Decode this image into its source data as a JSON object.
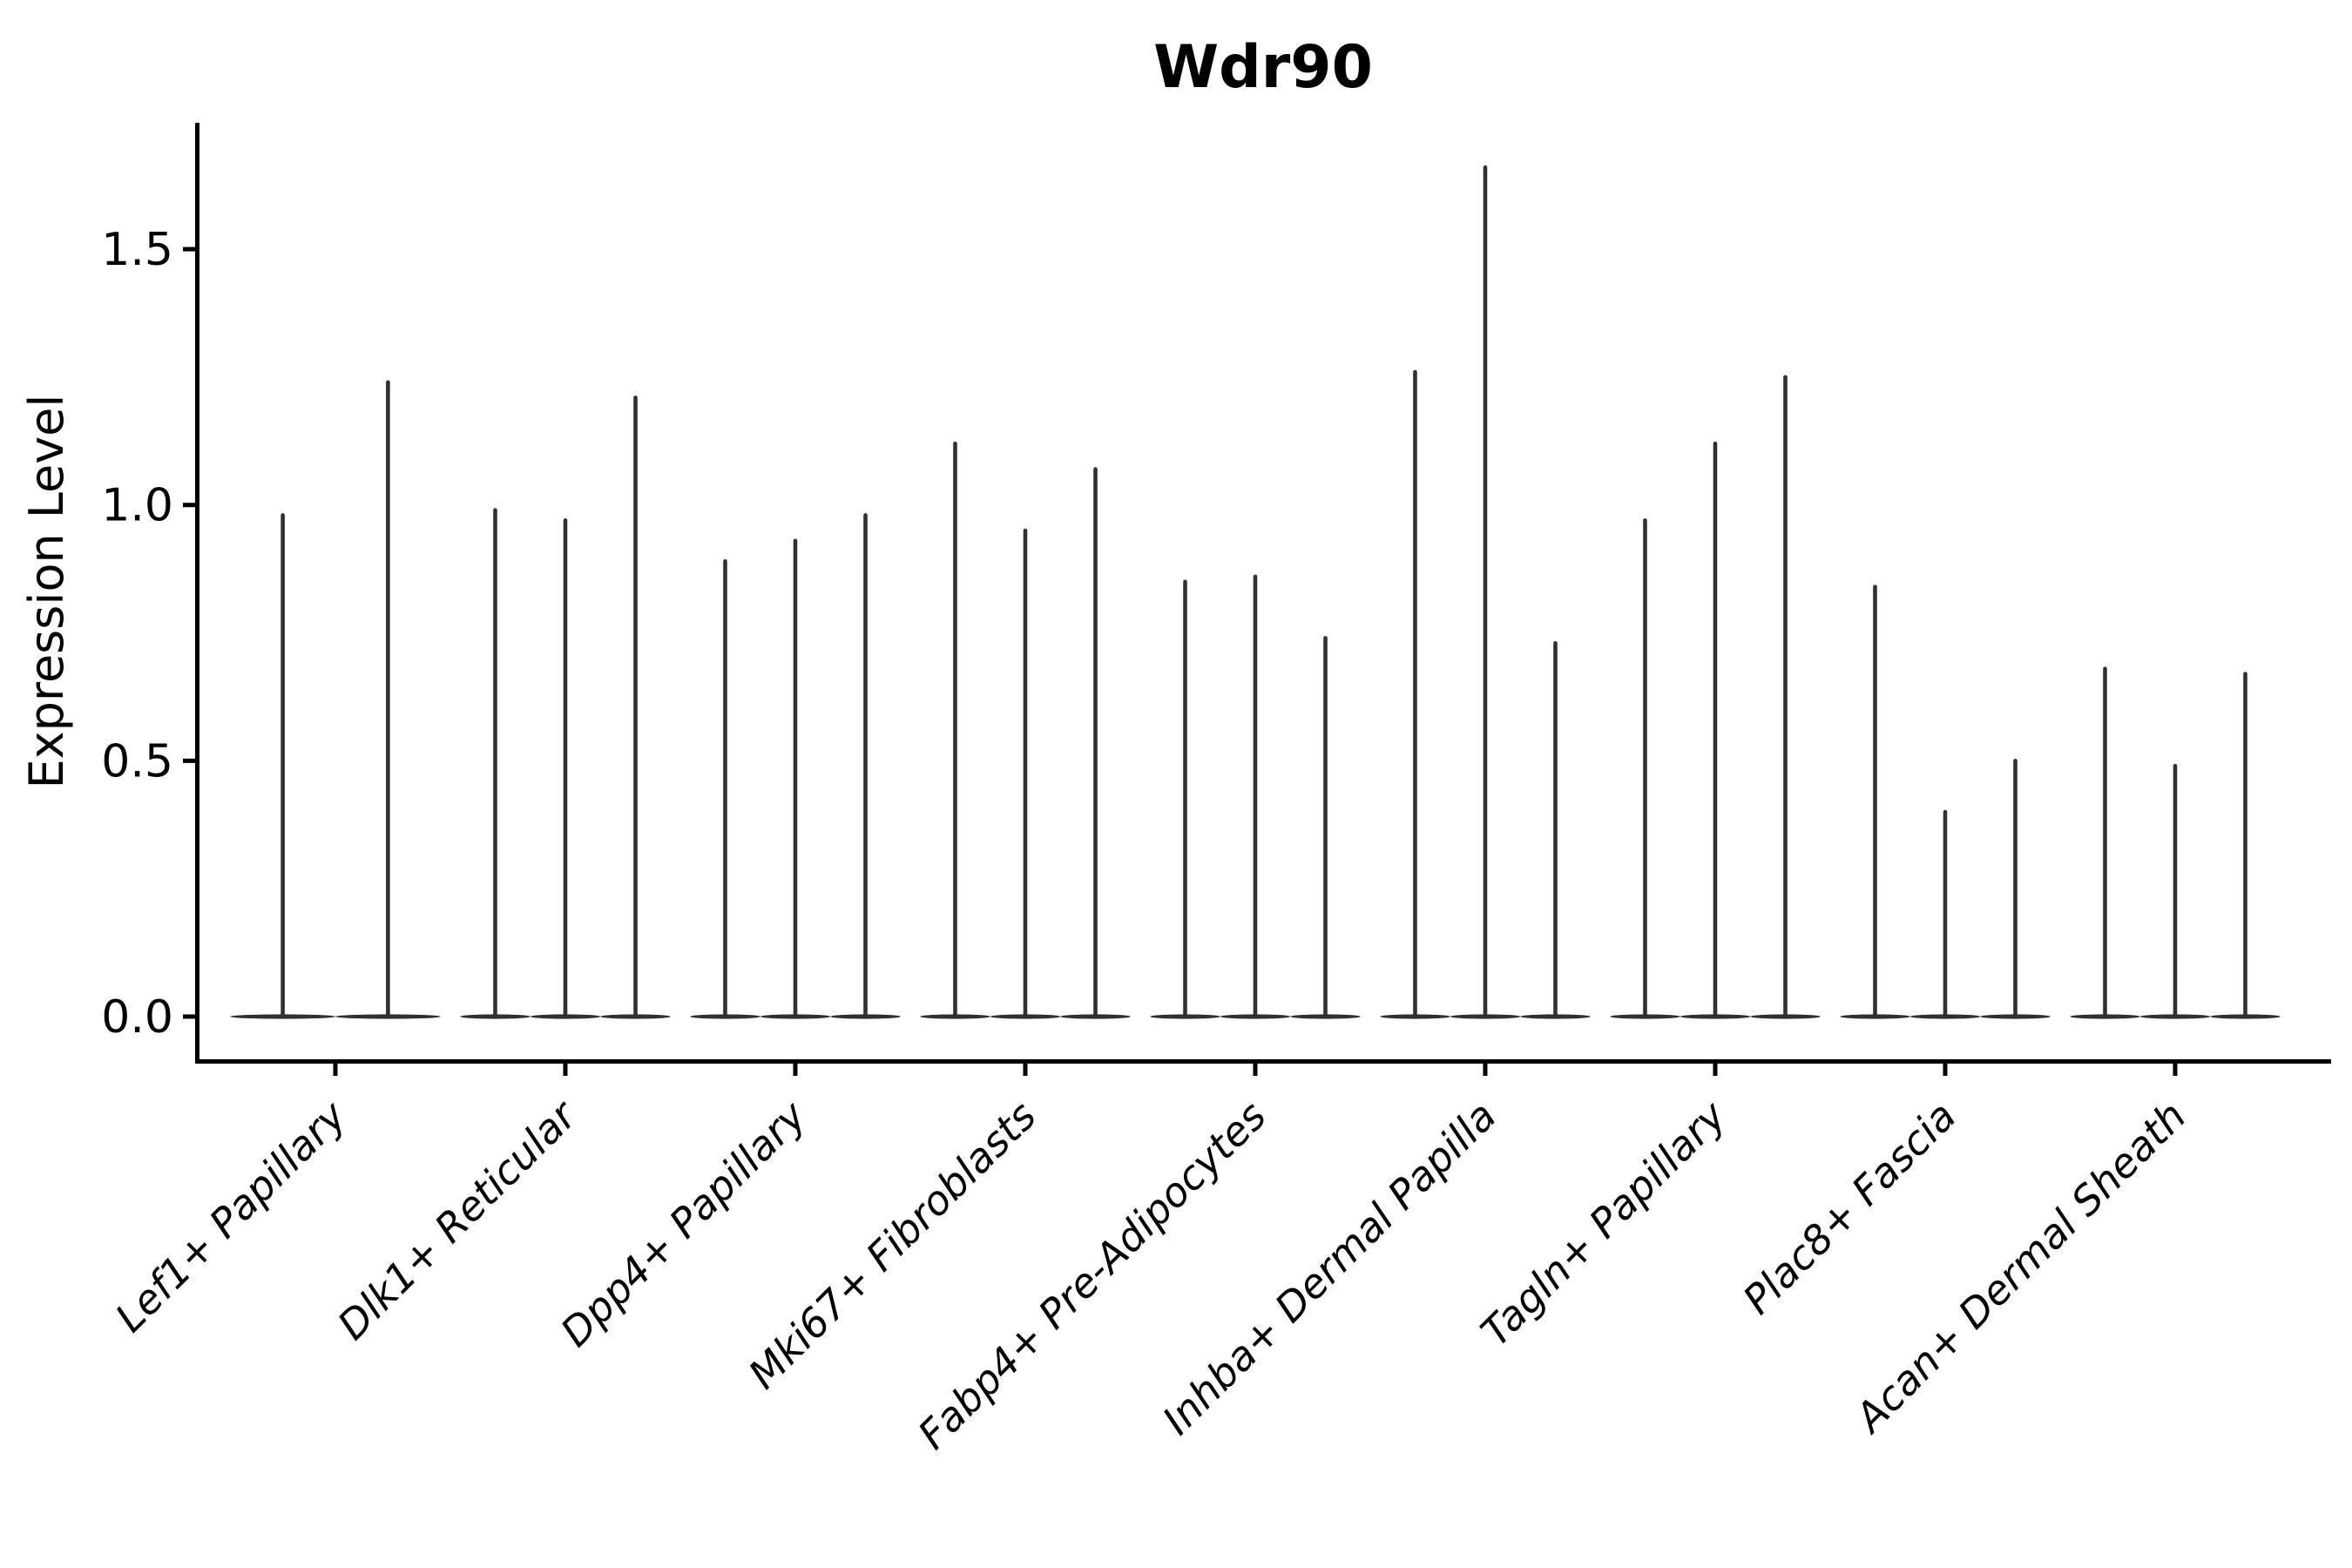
{
  "chart_data": {
    "type": "violin",
    "title": "Wdr90",
    "ylabel": "Expression Level",
    "xlabel": "",
    "yticks": [
      0.0,
      0.5,
      1.0,
      1.5
    ],
    "ytick_labels": [
      "0.0",
      "0.5",
      "1.0",
      "1.5"
    ],
    "ylim": [
      -0.09,
      1.75
    ],
    "grid": false,
    "legend_position": "none",
    "background_color": "#ffffff",
    "violin_color": "#303030",
    "axis_color": "#000000",
    "text_color": "#000000",
    "categories": [
      "Lef1+ Papillary",
      "Dlk1+ Reticular",
      "Dpp4+ Papillary",
      "Mki67+ Fibroblasts",
      "Fabp4+ Pre-Adipocytes",
      "Inhba+ Dermal Papilla",
      "Tagln+ Papillary",
      "Plac8+ Fascia",
      "Acan+ Dermal Sheath"
    ],
    "groups": [
      {
        "category": "Lef1+ Papillary",
        "violin_maxima": [
          0.98,
          1.24
        ],
        "baseline_value": 0.0
      },
      {
        "category": "Dlk1+ Reticular",
        "violin_maxima": [
          0.99,
          0.97,
          1.21
        ],
        "baseline_value": 0.0
      },
      {
        "category": "Dpp4+ Papillary",
        "violin_maxima": [
          0.89,
          0.93,
          0.98
        ],
        "baseline_value": 0.0
      },
      {
        "category": "Mki67+ Fibroblasts",
        "violin_maxima": [
          1.12,
          0.95,
          1.07
        ],
        "baseline_value": 0.0
      },
      {
        "category": "Fabp4+ Pre-Adipocytes",
        "violin_maxima": [
          0.85,
          0.86,
          0.74
        ],
        "baseline_value": 0.0
      },
      {
        "category": "Inhba+ Dermal Papilla",
        "violin_maxima": [
          1.26,
          1.66,
          0.73
        ],
        "baseline_value": 0.0
      },
      {
        "category": "Tagln+ Papillary",
        "violin_maxima": [
          0.97,
          1.12,
          1.25
        ],
        "baseline_value": 0.0
      },
      {
        "category": "Plac8+ Fascia",
        "violin_maxima": [
          0.84,
          0.4,
          0.5
        ],
        "baseline_value": 0.0
      },
      {
        "category": "Acan+ Dermal Sheath",
        "violin_maxima": [
          0.68,
          0.49,
          0.67
        ],
        "baseline_value": 0.0
      }
    ]
  }
}
